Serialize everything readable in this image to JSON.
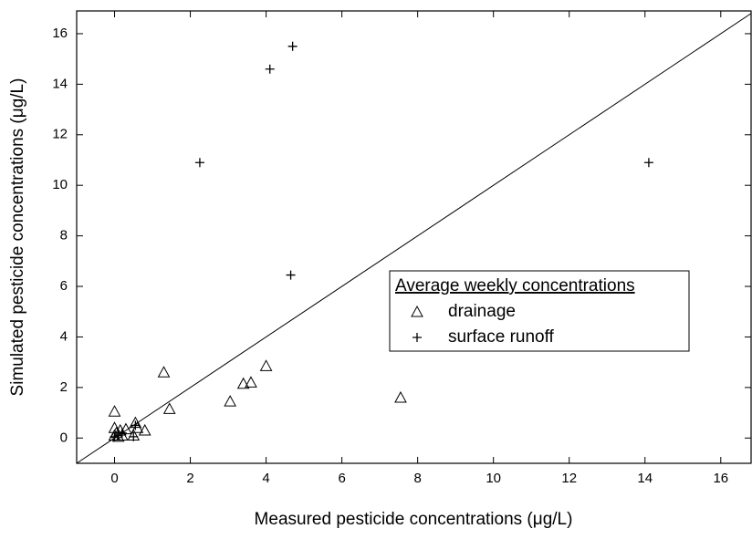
{
  "chart_data": {
    "type": "scatter",
    "xlabel": "Measured pesticide concentrations (μg/L)",
    "ylabel": "Simulated pesticide concentrations (μg/L)",
    "xlim": [
      -1,
      16.8
    ],
    "ylim": [
      -1,
      16.9
    ],
    "xticks": [
      0,
      2,
      4,
      6,
      8,
      10,
      12,
      14,
      16
    ],
    "yticks": [
      0,
      2,
      4,
      6,
      8,
      10,
      12,
      14,
      16
    ],
    "legend_title": "Average weekly concentrations",
    "legend_position": "center-right",
    "series": [
      {
        "name": "drainage",
        "marker": "triangle",
        "color": "#000000",
        "x": [
          0,
          0,
          0,
          0.05,
          0.1,
          0.15,
          0.2,
          0.3,
          0.5,
          0.55,
          0.6,
          0.8,
          1.3,
          1.45,
          3.05,
          3.4,
          3.6,
          4.0,
          7.55
        ],
        "values": [
          1.05,
          0.4,
          0.1,
          0.2,
          0.05,
          0.3,
          0.1,
          0.35,
          0.1,
          0.6,
          0.4,
          0.3,
          2.6,
          1.15,
          1.45,
          2.15,
          2.2,
          2.85,
          1.6
        ]
      },
      {
        "name": "surface runoff",
        "marker": "plus",
        "color": "#000000",
        "x": [
          2.25,
          4.1,
          4.7,
          4.65,
          14.1,
          0,
          0.1,
          0.2,
          0.5,
          0.55
        ],
        "values": [
          10.9,
          14.6,
          15.5,
          6.45,
          10.9,
          0.05,
          0.1,
          0.2,
          0.05,
          0.5
        ]
      }
    ]
  }
}
